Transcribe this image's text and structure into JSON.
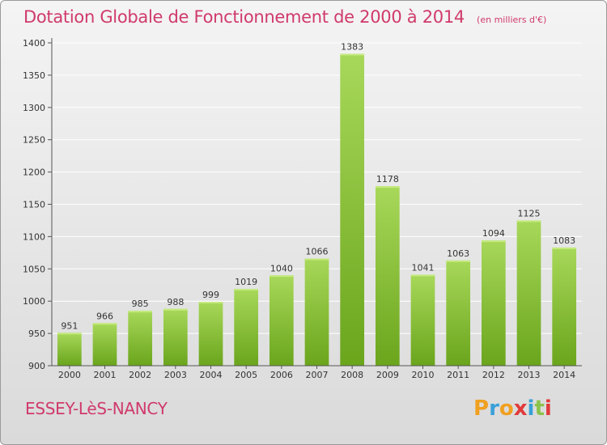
{
  "title": "Dotation Globale de Fonctionnement de 2000 à 2014",
  "unit_note": "(en milliers d'€)",
  "city": "ESSEY-LèS-NANCY",
  "logo": {
    "letters": [
      "P",
      "r",
      "o",
      "x",
      "i",
      "t",
      "i"
    ],
    "colors": [
      "#f0a020",
      "#3aa0d8",
      "#f0a020",
      "#e23a3a",
      "#3aa0d8",
      "#8bc34a",
      "#e23a3a"
    ]
  },
  "colors": {
    "bar_light": "#a8d85a",
    "bar_dark": "#6aa51c",
    "title": "#d03a6b",
    "grid": "#ffffff"
  },
  "chart_data": {
    "type": "bar",
    "categories": [
      "2000",
      "2001",
      "2002",
      "2003",
      "2004",
      "2005",
      "2006",
      "2007",
      "2008",
      "2009",
      "2010",
      "2011",
      "2012",
      "2013",
      "2014"
    ],
    "values": [
      951,
      966,
      985,
      988,
      999,
      1019,
      1040,
      1066,
      1383,
      1178,
      1041,
      1063,
      1094,
      1125,
      1083
    ],
    "ylim": [
      900,
      1400
    ],
    "yticks": [
      900,
      950,
      1000,
      1050,
      1100,
      1150,
      1200,
      1250,
      1300,
      1350,
      1400
    ],
    "grid": true,
    "data_labels": true
  }
}
